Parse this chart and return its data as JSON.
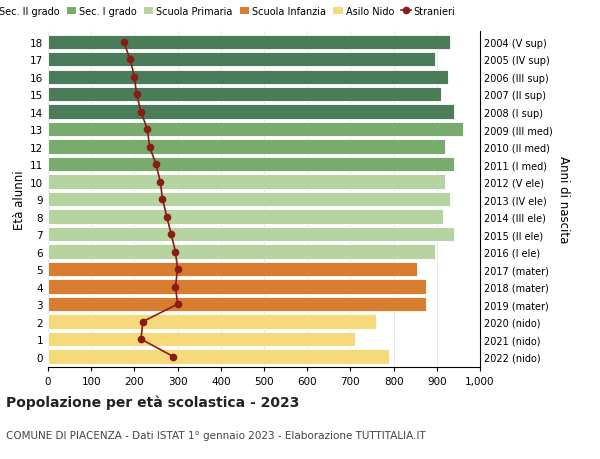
{
  "ages": [
    18,
    17,
    16,
    15,
    14,
    13,
    12,
    11,
    10,
    9,
    8,
    7,
    6,
    5,
    4,
    3,
    2,
    1,
    0
  ],
  "labels_right": [
    "2004 (V sup)",
    "2005 (IV sup)",
    "2006 (III sup)",
    "2007 (II sup)",
    "2008 (I sup)",
    "2009 (III med)",
    "2010 (II med)",
    "2011 (I med)",
    "2012 (V ele)",
    "2013 (IV ele)",
    "2014 (III ele)",
    "2015 (II ele)",
    "2016 (I ele)",
    "2017 (mater)",
    "2018 (mater)",
    "2019 (mater)",
    "2020 (nido)",
    "2021 (nido)",
    "2022 (nido)"
  ],
  "bar_values": [
    930,
    895,
    925,
    910,
    940,
    960,
    920,
    940,
    920,
    930,
    915,
    940,
    895,
    855,
    875,
    875,
    760,
    710,
    790
  ],
  "bar_colors": [
    "#4a7c59",
    "#4a7c59",
    "#4a7c59",
    "#4a7c59",
    "#4a7c59",
    "#7aab6e",
    "#7aab6e",
    "#7aab6e",
    "#b5d4a0",
    "#b5d4a0",
    "#b5d4a0",
    "#b5d4a0",
    "#b5d4a0",
    "#d97d30",
    "#d97d30",
    "#d97d30",
    "#f5d97a",
    "#f5d97a",
    "#f5d97a"
  ],
  "stranieri_values": [
    175,
    190,
    200,
    205,
    215,
    230,
    235,
    250,
    260,
    265,
    275,
    285,
    295,
    300,
    295,
    300,
    220,
    215,
    290
  ],
  "stranieri_color": "#8b1a1a",
  "legend_labels": [
    "Sec. II grado",
    "Sec. I grado",
    "Scuola Primaria",
    "Scuola Infanzia",
    "Asilo Nido",
    "Stranieri"
  ],
  "legend_colors": [
    "#4a7c59",
    "#7aab6e",
    "#b5d4a0",
    "#d97d30",
    "#f5d97a",
    "#8b1a1a"
  ],
  "ylabel_left": "Età alunni",
  "ylabel_right": "Anni di nascita",
  "title": "Popolazione per età scolastica - 2023",
  "subtitle": "COMUNE DI PIACENZA - Dati ISTAT 1° gennaio 2023 - Elaborazione TUTTITALIA.IT",
  "xlim": [
    0,
    1000
  ],
  "xticks": [
    0,
    100,
    200,
    300,
    400,
    500,
    600,
    700,
    800,
    900,
    1000
  ],
  "xtick_labels": [
    "0",
    "100",
    "200",
    "300",
    "400",
    "500",
    "600",
    "700",
    "800",
    "900",
    "1,000"
  ],
  "background_color": "#ffffff",
  "bar_height": 0.82
}
